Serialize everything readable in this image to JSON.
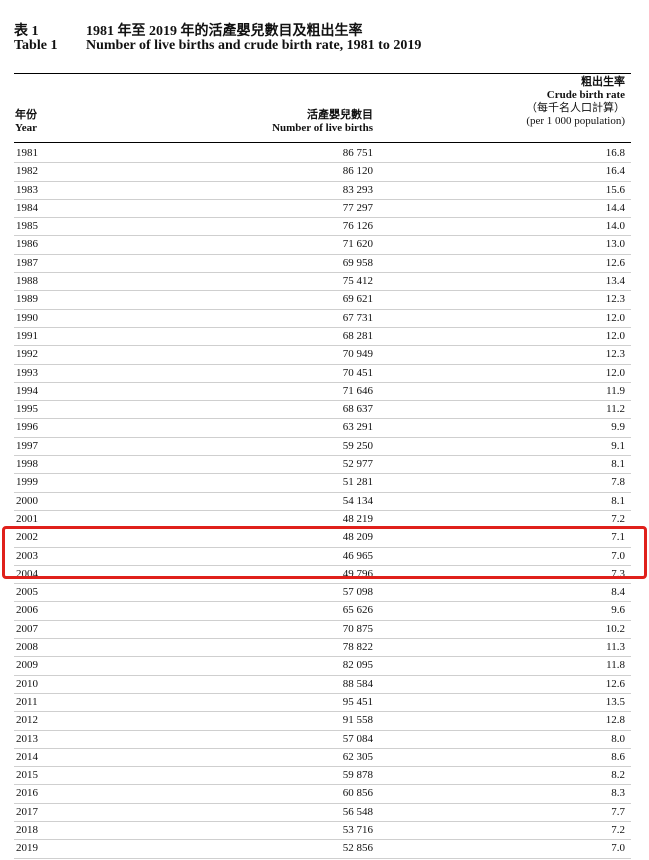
{
  "title": {
    "zh_num": "表 1",
    "zh_text": "1981 年至 2019 年的活產嬰兒數目及粗出生率",
    "en_num": "Table 1",
    "en_text": "Number of live births and crude birth rate, 1981 to 2019"
  },
  "headers": {
    "year_zh": "年份",
    "year_en": "Year",
    "births_zh": "活產嬰兒數目",
    "births_en": "Number of live births",
    "rate_zh": "粗出生率",
    "rate_en": "Crude birth rate",
    "rate_unit_zh": "（每千名人口計算）",
    "rate_unit_en": "(per 1 000 population)"
  },
  "rows": [
    {
      "year": "1981",
      "births": "86 751",
      "rate": "16.8"
    },
    {
      "year": "1982",
      "births": "86 120",
      "rate": "16.4"
    },
    {
      "year": "1983",
      "births": "83 293",
      "rate": "15.6"
    },
    {
      "year": "1984",
      "births": "77 297",
      "rate": "14.4"
    },
    {
      "year": "1985",
      "births": "76 126",
      "rate": "14.0"
    },
    {
      "year": "1986",
      "births": "71 620",
      "rate": "13.0"
    },
    {
      "year": "1987",
      "births": "69 958",
      "rate": "12.6"
    },
    {
      "year": "1988",
      "births": "75 412",
      "rate": "13.4"
    },
    {
      "year": "1989",
      "births": "69 621",
      "rate": "12.3"
    },
    {
      "year": "1990",
      "births": "67 731",
      "rate": "12.0"
    },
    {
      "year": "1991",
      "births": "68 281",
      "rate": "12.0"
    },
    {
      "year": "1992",
      "births": "70 949",
      "rate": "12.3"
    },
    {
      "year": "1993",
      "births": "70 451",
      "rate": "12.0"
    },
    {
      "year": "1994",
      "births": "71 646",
      "rate": "11.9"
    },
    {
      "year": "1995",
      "births": "68 637",
      "rate": "11.2"
    },
    {
      "year": "1996",
      "births": "63 291",
      "rate": "9.9"
    },
    {
      "year": "1997",
      "births": "59 250",
      "rate": "9.1"
    },
    {
      "year": "1998",
      "births": "52 977",
      "rate": "8.1"
    },
    {
      "year": "1999",
      "births": "51 281",
      "rate": "7.8"
    },
    {
      "year": "2000",
      "births": "54 134",
      "rate": "8.1"
    },
    {
      "year": "2001",
      "births": "48 219",
      "rate": "7.2"
    },
    {
      "year": "2002",
      "births": "48 209",
      "rate": "7.1"
    },
    {
      "year": "2003",
      "births": "46 965",
      "rate": "7.0"
    },
    {
      "year": "2004",
      "births": "49 796",
      "rate": "7.3"
    },
    {
      "year": "2005",
      "births": "57 098",
      "rate": "8.4"
    },
    {
      "year": "2006",
      "births": "65 626",
      "rate": "9.6"
    },
    {
      "year": "2007",
      "births": "70 875",
      "rate": "10.2"
    },
    {
      "year": "2008",
      "births": "78 822",
      "rate": "11.3"
    },
    {
      "year": "2009",
      "births": "82 095",
      "rate": "11.8"
    },
    {
      "year": "2010",
      "births": "88 584",
      "rate": "12.6"
    },
    {
      "year": "2011",
      "births": "95 451",
      "rate": "13.5"
    },
    {
      "year": "2012",
      "births": "91 558",
      "rate": "12.8"
    },
    {
      "year": "2013",
      "births": "57 084",
      "rate": "8.0"
    },
    {
      "year": "2014",
      "births": "62 305",
      "rate": "8.6"
    },
    {
      "year": "2015",
      "births": "59 878",
      "rate": "8.2"
    },
    {
      "year": "2016",
      "births": "60 856",
      "rate": "8.3"
    },
    {
      "year": "2017",
      "births": "56 548",
      "rate": "7.7"
    },
    {
      "year": "2018",
      "births": "53 716",
      "rate": "7.2"
    },
    {
      "year": "2019",
      "births": "52 856",
      "rate": "7.0"
    }
  ],
  "highlight": {
    "color": "#e0201b",
    "rows": [
      "2002",
      "2003",
      "2004"
    ]
  }
}
